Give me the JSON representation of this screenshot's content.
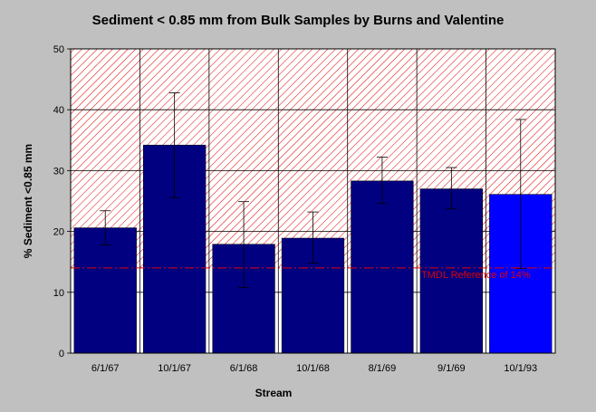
{
  "chart_data": {
    "type": "bar",
    "title": "Sediment < 0.85 mm from Bulk Samples by Burns and Valentine",
    "xlabel": "Stream",
    "ylabel": "% Sediment <0.85 mm",
    "ylim": [
      0,
      50
    ],
    "yticks": [
      "0",
      "10",
      "20",
      "30",
      "40",
      "50"
    ],
    "grid": true,
    "categories": [
      "6/1/67",
      "10/1/67",
      "6/1/68",
      "10/1/68",
      "8/1/69",
      "9/1/69",
      "10/1/93"
    ],
    "values": [
      20.6,
      34.2,
      17.9,
      18.9,
      28.3,
      27.0,
      26.1
    ],
    "error_low": [
      17.8,
      25.5,
      10.8,
      14.8,
      24.6,
      23.7,
      13.9
    ],
    "error_high": [
      23.4,
      42.8,
      24.9,
      23.2,
      32.2,
      30.5,
      38.4
    ],
    "bar_colors": [
      "#000080",
      "#000080",
      "#000080",
      "#000080",
      "#000080",
      "#000080",
      "#0000ff"
    ],
    "reference": {
      "value": 14,
      "label": "TMDL Reference of 14%",
      "color": "#e00000"
    },
    "hatched_range": [
      14,
      50
    ],
    "hatch_color": "#e00000",
    "plot_background": "#ffffff",
    "page_background": "#c0c0c0"
  }
}
